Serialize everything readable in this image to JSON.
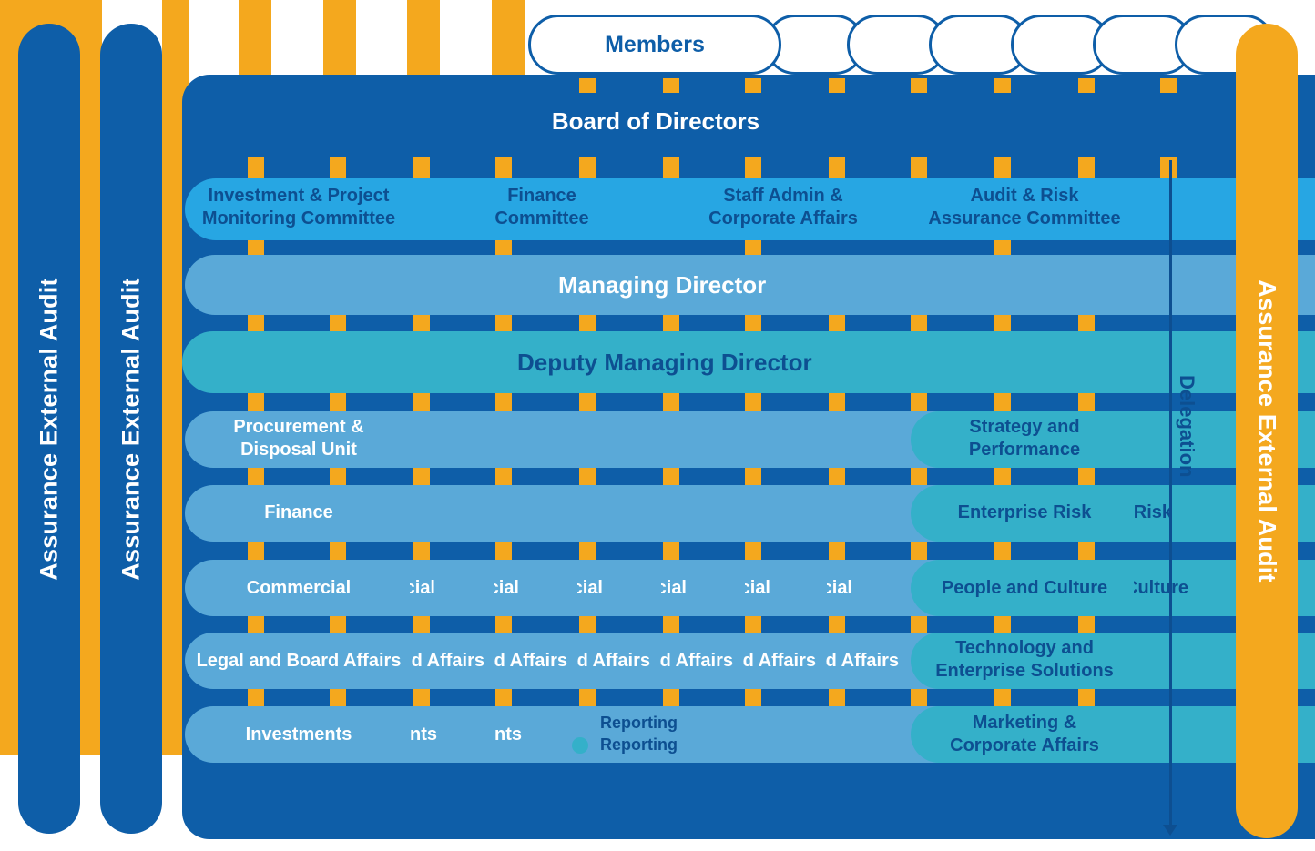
{
  "diagram": {
    "members": "Members",
    "board": "Board of Directors",
    "committees": [
      {
        "line1": "Investment & Project",
        "line2": "Monitoring Committee"
      },
      {
        "line1": "Finance",
        "line2": "Committee"
      },
      {
        "line1": "Staff Admin &",
        "line2": "Corporate Affairs"
      },
      {
        "line1": "Audit & Risk",
        "line2": "Assurance Committee"
      }
    ],
    "managing_director": "Managing Director",
    "deputy_managing_director": "Deputy Managing Director",
    "units_left": [
      {
        "line1": "Procurement &",
        "line2": "Disposal Unit"
      },
      {
        "line1": "Finance",
        "line2": ""
      },
      {
        "line1": "Commercial",
        "line2": ""
      },
      {
        "line1": "Legal and Board Affairs",
        "line2": ""
      },
      {
        "line1": "Investments",
        "line2": ""
      }
    ],
    "units_right": [
      {
        "line1": "Strategy and",
        "line2": "Performance"
      },
      {
        "line1": "Enterprise Risk",
        "line2": ""
      },
      {
        "line1": "People and Culture",
        "line2": ""
      },
      {
        "line1": "Technology and",
        "line2": "Enterprise Solutions"
      },
      {
        "line1": "Marketing &",
        "line2": "Corporate Affairs"
      }
    ],
    "assurance_left_1": "Assurance External Audit",
    "assurance_left_2": "Assurance External Audit",
    "assurance_right": "Assurance External Audit",
    "delegation": "Delegation",
    "reporting": "Reporting"
  },
  "colors": {
    "navy": "#0e5ea8",
    "orange": "#f4a81e",
    "sky": "#27a6e3",
    "light_blue": "#5aa9d8",
    "teal": "#34b0c9"
  }
}
